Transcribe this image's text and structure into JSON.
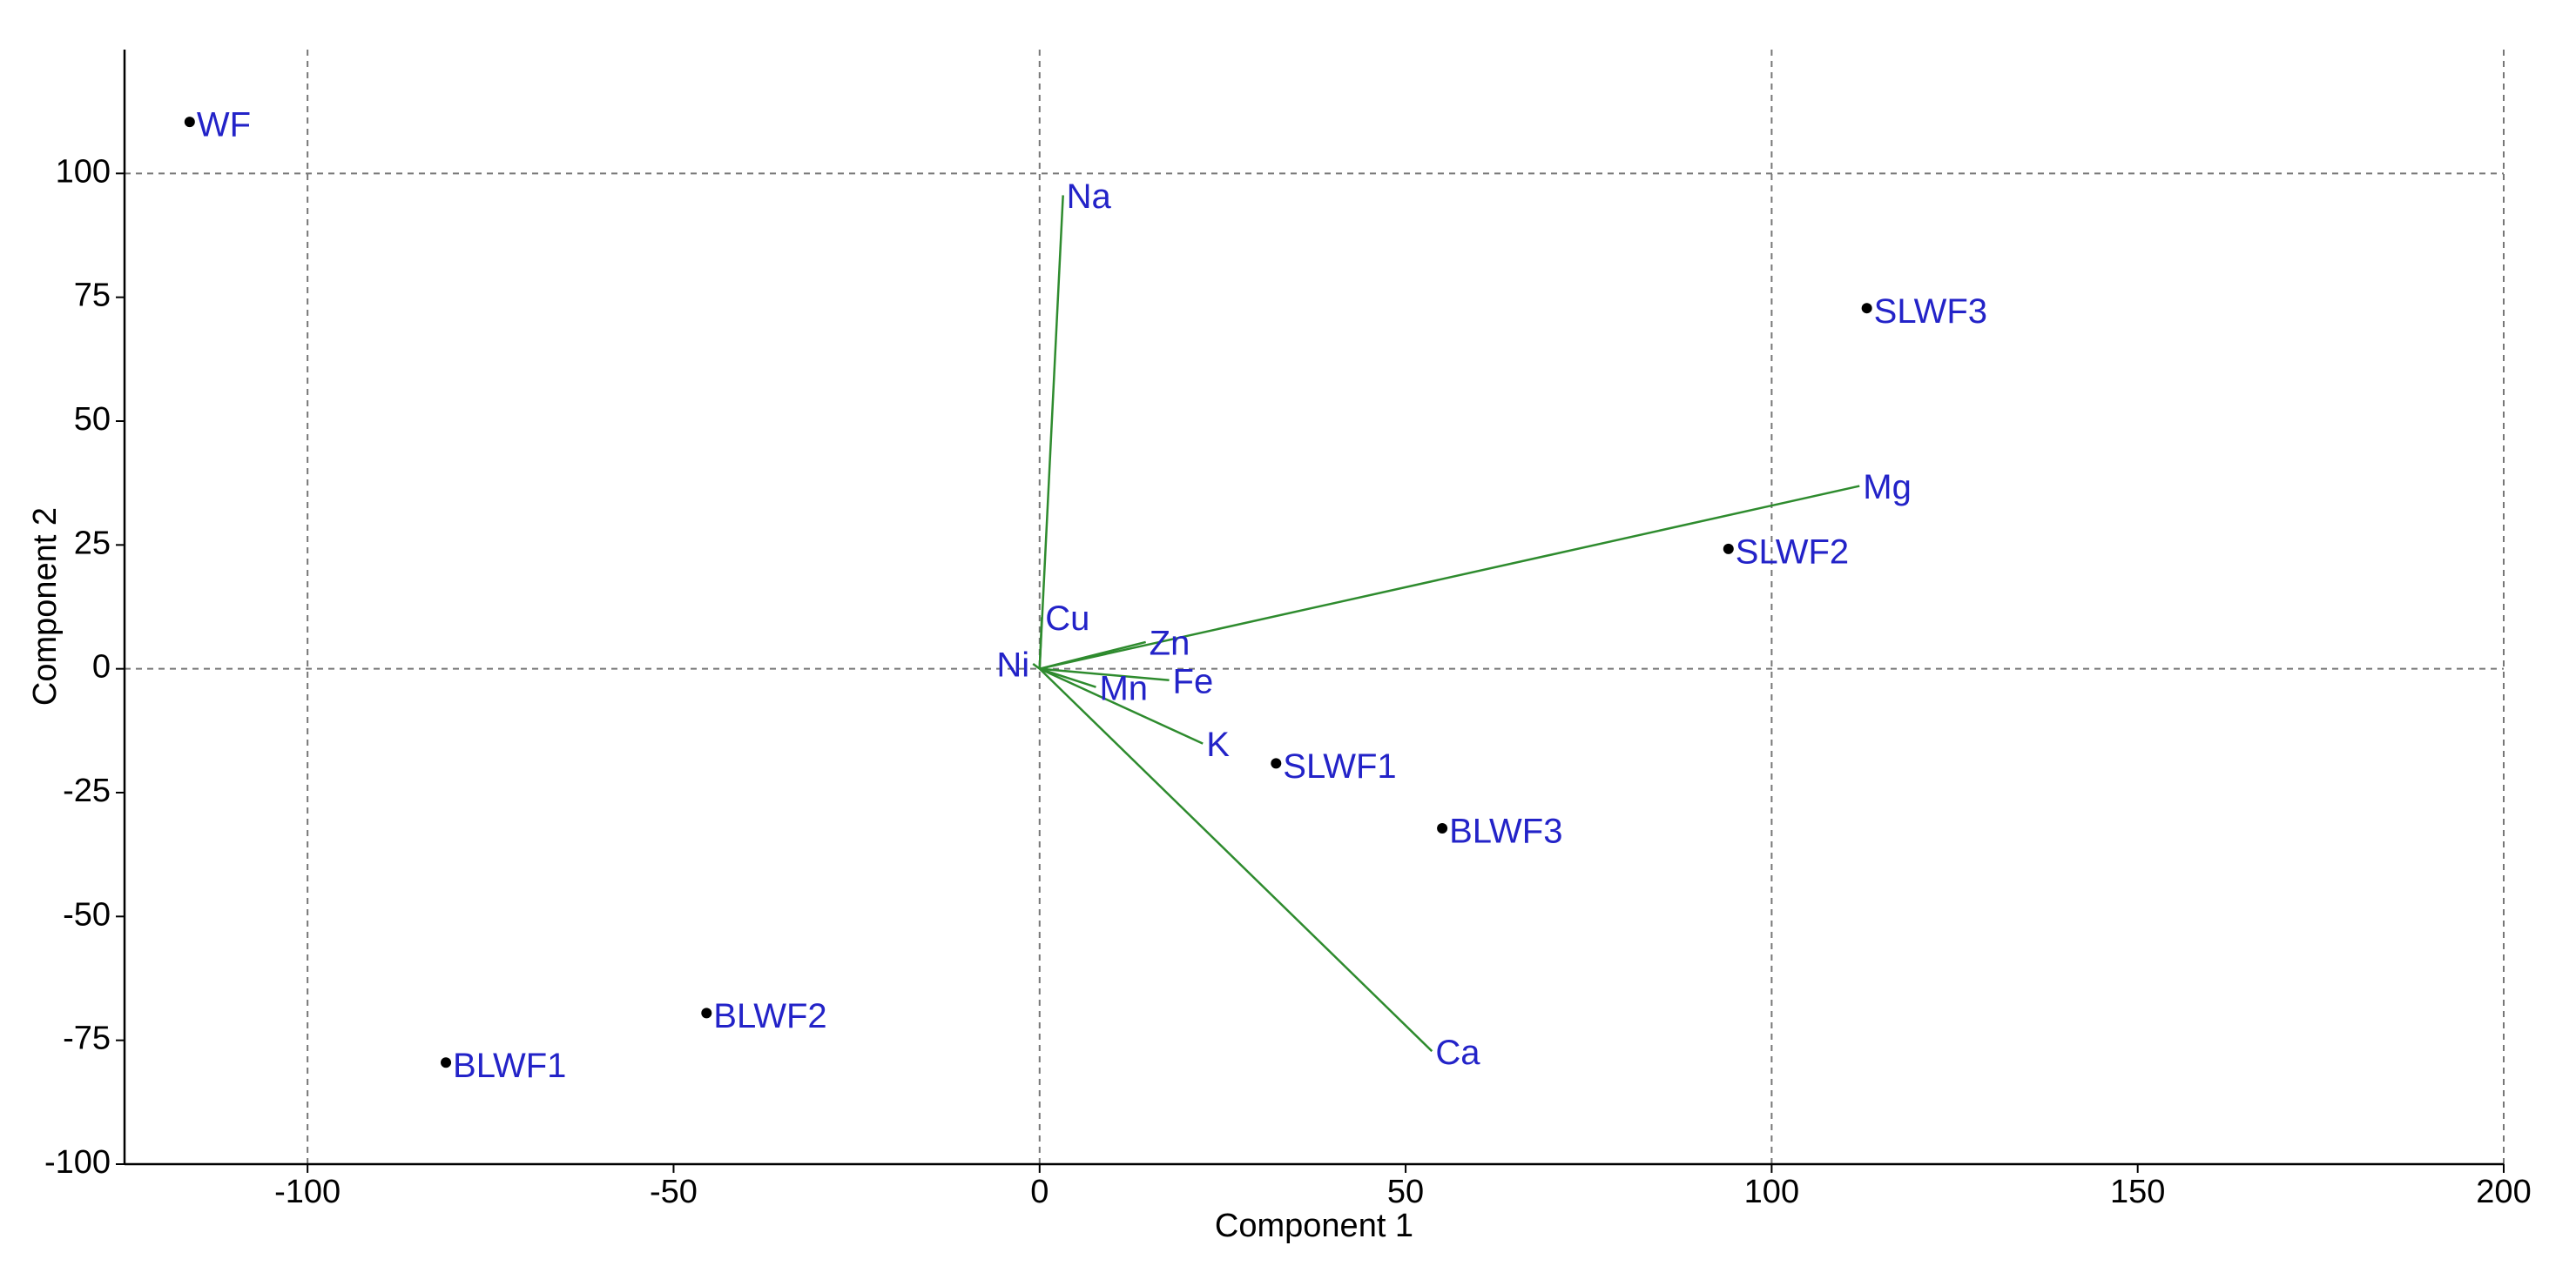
{
  "chart_data": {
    "type": "biplot",
    "x_label": "Component 1",
    "y_label": "Component 2",
    "xlim": [
      -125,
      200
    ],
    "ylim": [
      -100,
      125
    ],
    "xticks": [
      -100,
      -50,
      0,
      50,
      100,
      150,
      200
    ],
    "yticks": [
      -100,
      -75,
      -50,
      -25,
      0,
      25,
      50,
      75,
      100
    ],
    "x_gridlines": [
      -100,
      0,
      100,
      200
    ],
    "y_gridlines": [
      0,
      100
    ],
    "grid_style": "dashed",
    "scores": {
      "color": "#000000",
      "label_color": "#2323c8",
      "labels": [
        "WF",
        "SLWF3",
        "SLWF2",
        "SLWF1",
        "BLWF3",
        "BLWF2",
        "BLWF1"
      ],
      "x": [
        -116.1,
        113,
        94.1,
        32.3,
        55,
        -45.5,
        -81.1
      ],
      "y": [
        110.4,
        72.8,
        24.2,
        -19.1,
        -32.2,
        -69.5,
        -79.5
      ]
    },
    "loadings": {
      "color": "#2e8b2e",
      "label_color": "#2323c8",
      "labels": [
        "Na",
        "Mg",
        "Ca",
        "K",
        "Fe",
        "Mn",
        "Zn",
        "Cu",
        "Ni"
      ],
      "x": [
        3.2,
        112,
        53.6,
        22.3,
        17.7,
        7.7,
        14.5,
        0.3,
        -0.9
      ],
      "y": [
        95.6,
        36.9,
        -77.2,
        -15.1,
        -2.3,
        -3.7,
        5.4,
        10.4,
        1.0
      ]
    }
  }
}
